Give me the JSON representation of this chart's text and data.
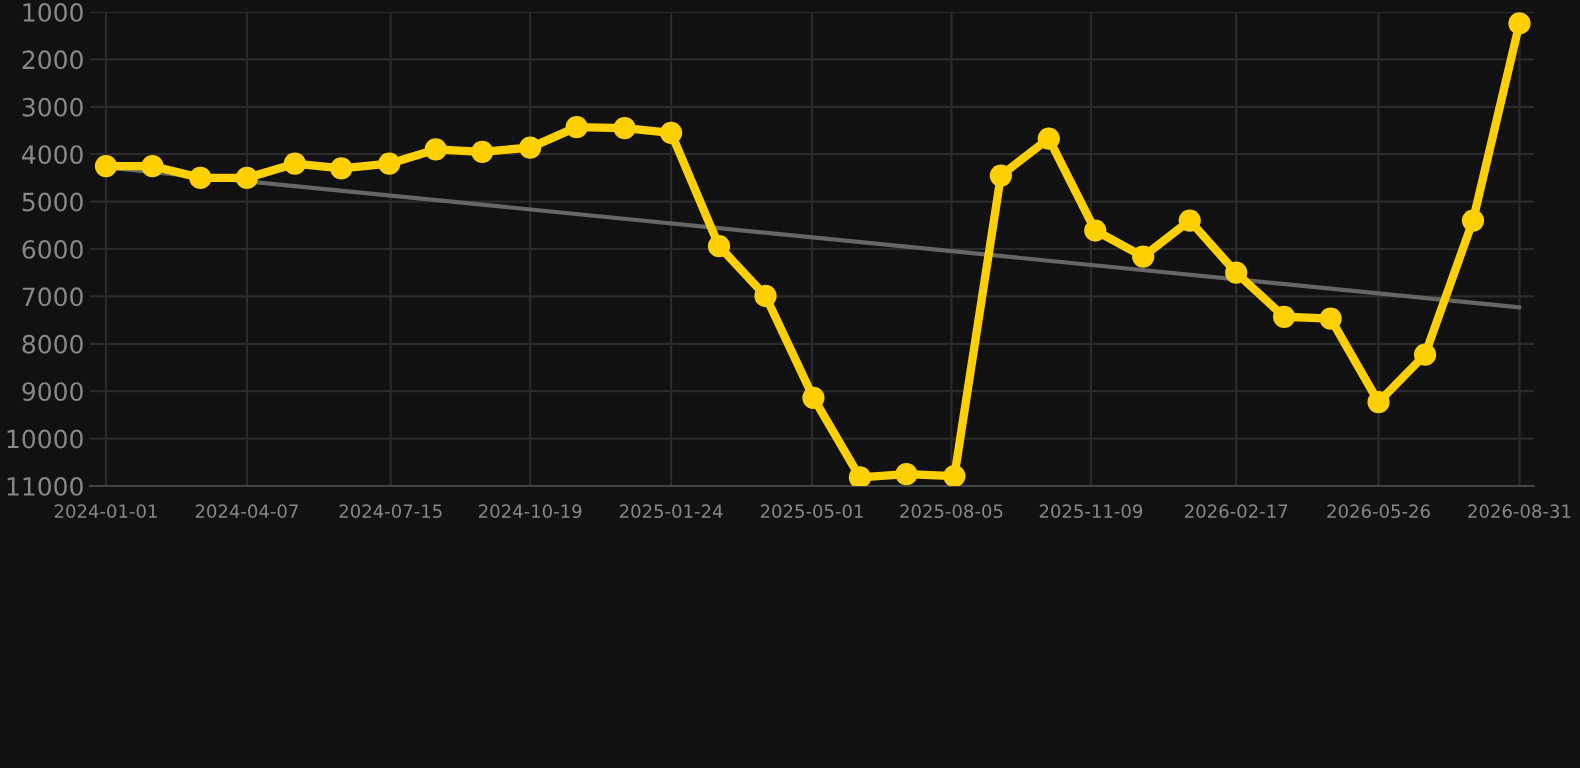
{
  "chart_data": {
    "type": "line",
    "x": [
      "2024-01-01",
      "2024-02-02",
      "2024-03-06",
      "2024-04-07",
      "2024-05-10",
      "2024-06-11",
      "2024-07-14",
      "2024-08-15",
      "2024-09-16",
      "2024-10-19",
      "2024-11-20",
      "2024-12-23",
      "2025-01-24",
      "2025-02-26",
      "2025-03-30",
      "2025-05-02",
      "2025-06-03",
      "2025-07-05",
      "2025-08-07",
      "2025-09-08",
      "2025-10-11",
      "2025-11-12",
      "2025-12-15",
      "2026-01-16",
      "2026-02-17",
      "2026-03-22",
      "2026-04-23",
      "2026-05-26",
      "2026-06-27",
      "2026-07-30",
      "2026-08-31"
    ],
    "series": [
      {
        "color": "#ffd000",
        "marker": "circle",
        "values": [
          4250,
          4250,
          4500,
          4500,
          4200,
          4300,
          4200,
          3900,
          3950,
          3860,
          3430,
          3450,
          3550,
          5940,
          6990,
          9140,
          10820,
          10750,
          10790,
          4450,
          3670,
          5610,
          6160,
          5400,
          6500,
          7430,
          7470,
          9230,
          8230,
          5400,
          1240
        ]
      },
      {
        "type": "line",
        "color": "#666666",
        "marker": "none",
        "x": [
          "2024-01-01",
          "2026-08-31"
        ],
        "values": [
          4280,
          7230
        ]
      }
    ],
    "xlim": [
      "2023-12-21",
      "2026-09-10"
    ],
    "xticks": [
      "2024-01-01",
      "2024-04-07",
      "2024-07-15",
      "2024-10-19",
      "2025-01-24",
      "2025-05-01",
      "2025-08-05",
      "2025-11-09",
      "2026-02-17",
      "2026-05-26",
      "2026-08-31"
    ],
    "ylim": [
      11000,
      1000
    ],
    "yticks": [
      1000,
      2000,
      3000,
      4000,
      5000,
      6000,
      7000,
      8000,
      9000,
      10000,
      11000
    ],
    "grid": true
  }
}
